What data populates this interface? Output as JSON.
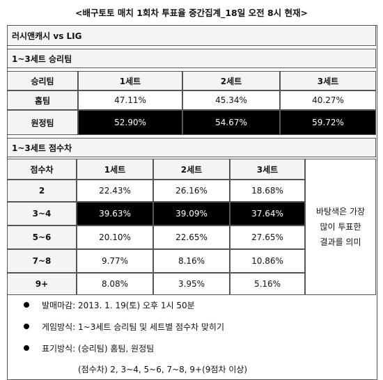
{
  "header": {
    "title": "<배구토토 매치 1회차 투표율 중간집계_18일 오전 8시 현재>",
    "match": "러시앤캐시 vs LIG"
  },
  "table1": {
    "title": "1~3세트 승리팀",
    "columns": [
      "승리팀",
      "1세트",
      "2세트",
      "3세트"
    ],
    "rows": [
      [
        "홈팀",
        "47.11%",
        "45.34%",
        "40.27%"
      ],
      [
        "원정팀",
        "52.90%",
        "54.67%",
        "59.72%"
      ]
    ]
  },
  "table2": {
    "title": "1~3세트 점수차",
    "columns": [
      "점수차",
      "1세트",
      "2세트",
      "3세트"
    ],
    "rows": [
      [
        "2",
        "22.43%",
        "26.16%",
        "18.68%"
      ],
      [
        "3~4",
        "39.63%",
        "39.09%",
        "37.64%"
      ],
      [
        "5~6",
        "20.10%",
        "22.65%",
        "27.65%"
      ],
      [
        "7~8",
        "9.77%",
        "8.16%",
        "10.86%"
      ],
      [
        "9+",
        "8.08%",
        "3.95%",
        "5.16%"
      ]
    ],
    "note": [
      "바탕색은 가장",
      "많이 투표한",
      "결과를 의미"
    ]
  },
  "notes": [
    "발매마감: 2013. 1. 19(토) 오후 1시 50분",
    "게임방식: 1~3세트 승리팀 및 세트별 점수차 맞히기",
    "표기방식: (승리팀) 홈팀, 원정팀"
  ],
  "notes_continuation": "(점수차) 2, 3~4, 5~6, 7~8, 9+(9점차 이상)"
}
